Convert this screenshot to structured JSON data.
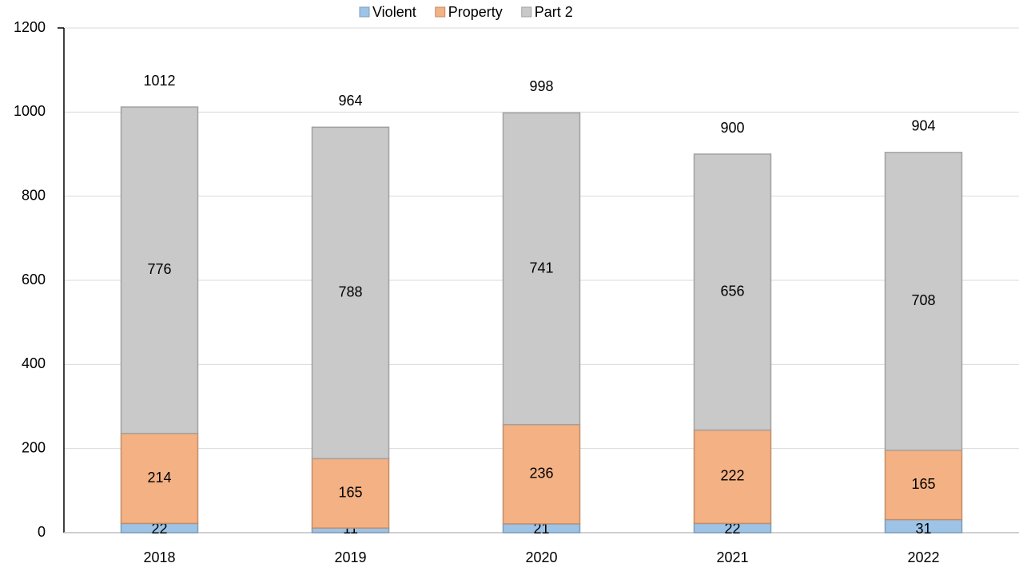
{
  "chart_data": {
    "type": "stacked_bar",
    "categories": [
      "2018",
      "2019",
      "2020",
      "2021",
      "2022"
    ],
    "series": [
      {
        "name": "Violent",
        "color": "#9dc3e6",
        "values": [
          22,
          11,
          21,
          22,
          31
        ]
      },
      {
        "name": "Property",
        "color": "#f4b183",
        "values": [
          214,
          165,
          236,
          222,
          165
        ]
      },
      {
        "name": "Part 2",
        "color": "#c9c9c9",
        "values": [
          776,
          788,
          741,
          656,
          708
        ]
      }
    ],
    "totals": [
      1012,
      964,
      998,
      900,
      904
    ],
    "ylim": [
      0,
      1200
    ],
    "yticks": [
      0,
      200,
      400,
      600,
      800,
      1000,
      1200
    ],
    "grid": true,
    "legend": "top"
  }
}
